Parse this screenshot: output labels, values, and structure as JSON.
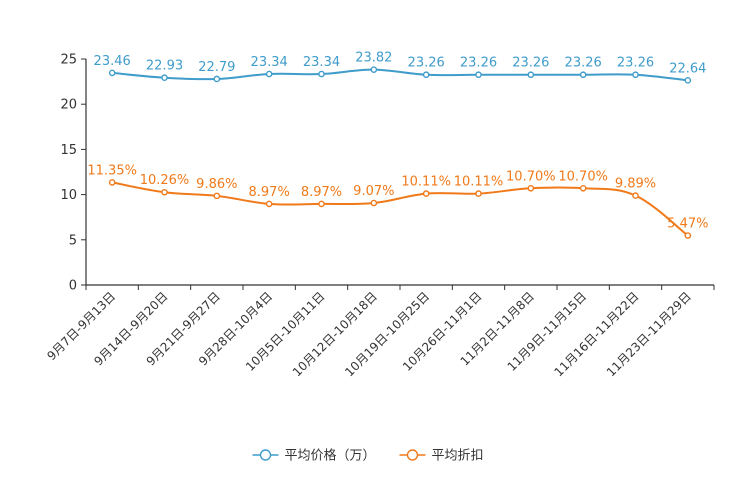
{
  "chart_data": {
    "type": "line",
    "title": "",
    "xlabel": "",
    "ylabel": "",
    "ylim": [
      0,
      25
    ],
    "yticks": [
      0,
      5,
      10,
      15,
      20,
      25
    ],
    "grid": false,
    "legend_position": "bottom-center",
    "categories": [
      "9月7日-9月13日",
      "9月14日-9月20日",
      "9月21日-9月27日",
      "9月28日-10月4日",
      "10月5日-10月11日",
      "10月12日-10月18日",
      "10月19日-10月25日",
      "10月26日-11月1日",
      "11月2日-11月8日",
      "11月9日-11月15日",
      "11月16日-11月22日",
      "11月23日-11月29日"
    ],
    "series": [
      {
        "name": "平均价格（万）",
        "color": "#3f9ccb",
        "values": [
          23.46,
          22.93,
          22.79,
          23.34,
          23.34,
          23.82,
          23.26,
          23.26,
          23.26,
          23.26,
          23.26,
          22.64
        ],
        "labels": [
          "23.46",
          "22.93",
          "22.79",
          "23.34",
          "23.34",
          "23.82",
          "23.26",
          "23.26",
          "23.26",
          "23.26",
          "23.26",
          "22.64"
        ]
      },
      {
        "name": "平均折扣",
        "color": "#f07a1a",
        "values": [
          11.35,
          10.26,
          9.86,
          8.97,
          8.97,
          9.07,
          10.11,
          10.11,
          10.7,
          10.7,
          9.89,
          5.47
        ],
        "labels": [
          "11.35%",
          "10.26%",
          "9.86%",
          "8.97%",
          "8.97%",
          "9.07%",
          "10.11%",
          "10.11%",
          "10.70%",
          "10.70%",
          "9.89%",
          "5.47%"
        ]
      }
    ]
  }
}
